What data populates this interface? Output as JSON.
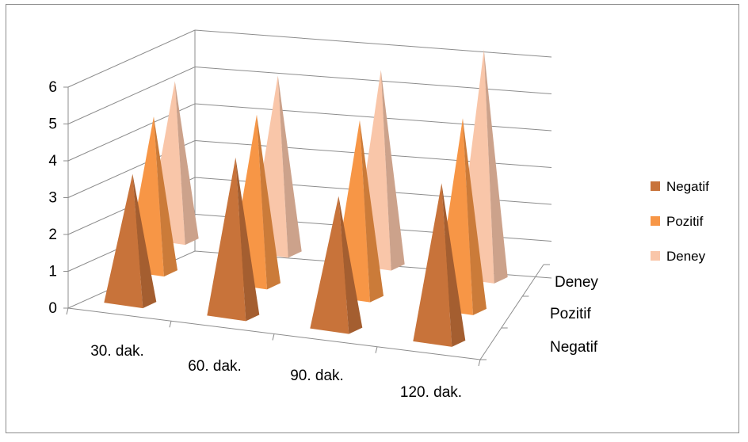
{
  "chart_data": {
    "type": "bar",
    "style": "3d-pyramid",
    "title": "",
    "xlabel": "",
    "ylabel": "",
    "categories": [
      "30. dak.",
      "60. dak.",
      "90. dak.",
      "120. dak."
    ],
    "series": [
      {
        "name": "Negatif",
        "values": [
          3,
          3.8,
          3.1,
          3.8
        ],
        "color": "#c8733a"
      },
      {
        "name": "Pozitif",
        "values": [
          3.7,
          4.1,
          4.3,
          4.7
        ],
        "color": "#f79646"
      },
      {
        "name": "Deney",
        "values": [
          3.8,
          4.3,
          4.8,
          5.7
        ],
        "color": "#f9c6a9"
      }
    ],
    "depth_labels": [
      "Negatif",
      "Pozitif",
      "Deney"
    ],
    "ylim": [
      0,
      6
    ],
    "yticks": [
      0,
      1,
      2,
      3,
      4,
      5,
      6
    ],
    "grid": true,
    "legend": "right"
  }
}
